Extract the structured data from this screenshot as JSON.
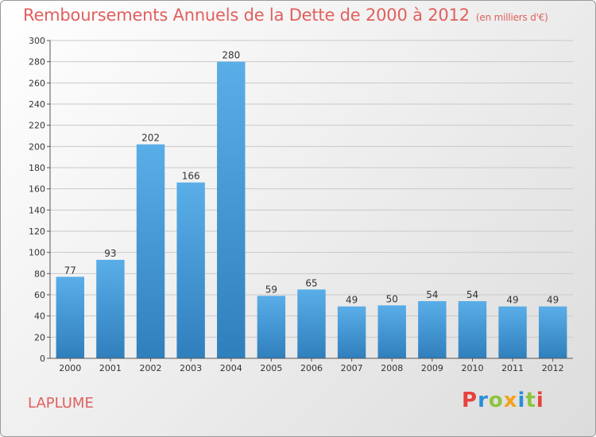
{
  "header": {
    "title": "Remboursements Annuels de la Dette de 2000 à 2012",
    "unit": "(en milliers d'€)"
  },
  "commune": "LAPLUME",
  "logo": {
    "text": "Proxiti",
    "letters": [
      {
        "ch": "P",
        "color": "#e8423c"
      },
      {
        "ch": "r",
        "color": "#2a8fd6"
      },
      {
        "ch": "o",
        "color": "#8cc43f"
      },
      {
        "ch": "x",
        "color": "#f2a31b"
      },
      {
        "ch": "i",
        "color": "#2a8fd6"
      },
      {
        "ch": "t",
        "color": "#8cc43f"
      },
      {
        "ch": "i",
        "color": "#e8423c"
      }
    ]
  },
  "colors": {
    "bar_top": "#5aaee8",
    "bar_bottom": "#2f7fbd",
    "title": "#e0605d"
  },
  "chart_data": {
    "type": "bar",
    "title": "Remboursements Annuels de la Dette de 2000 à 2012",
    "subtitle": "(en milliers d'€)",
    "xlabel": "",
    "ylabel": "",
    "categories": [
      "2000",
      "2001",
      "2002",
      "2003",
      "2004",
      "2005",
      "2006",
      "2007",
      "2008",
      "2009",
      "2010",
      "2011",
      "2012"
    ],
    "values": [
      77,
      93,
      202,
      166,
      280,
      59,
      65,
      49,
      50,
      54,
      54,
      49,
      49
    ],
    "ylim": [
      0,
      300
    ],
    "yticks": [
      0,
      20,
      40,
      60,
      80,
      100,
      120,
      140,
      160,
      180,
      200,
      220,
      240,
      260,
      280,
      300
    ],
    "grid": true,
    "legend": "none"
  }
}
